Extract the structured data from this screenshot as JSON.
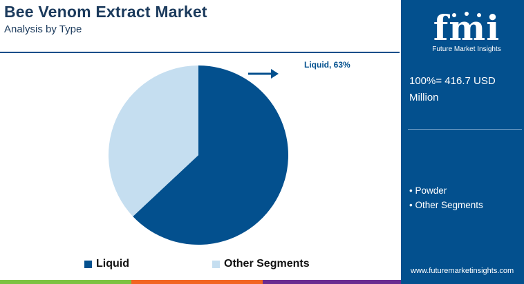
{
  "header": {
    "title": "Bee Venom Extract Market",
    "subtitle": "Analysis by Type"
  },
  "chart_data": {
    "type": "pie",
    "categories": [
      "Liquid",
      "Other Segments"
    ],
    "values": [
      63,
      37
    ],
    "colors": [
      "#03508e",
      "#c5def0"
    ],
    "annotation": "Liquid, 63%",
    "legend": [
      "Liquid",
      "Other Segments"
    ],
    "legend_position": "bottom"
  },
  "sidebar": {
    "logo_text": "fmi",
    "logo_tagline": "Future Market Insights",
    "total": "100%= 416.7 USD Million",
    "segments": [
      "Powder",
      "Other Segments"
    ],
    "website": "www.futuremarketinsights.com"
  },
  "colors": {
    "brand_dark": "#03508e",
    "title": "#1b3a5c",
    "light_slice": "#c5def0",
    "bar_green": "#7cc242",
    "bar_orange": "#f26522",
    "bar_purple": "#6a2c91"
  }
}
